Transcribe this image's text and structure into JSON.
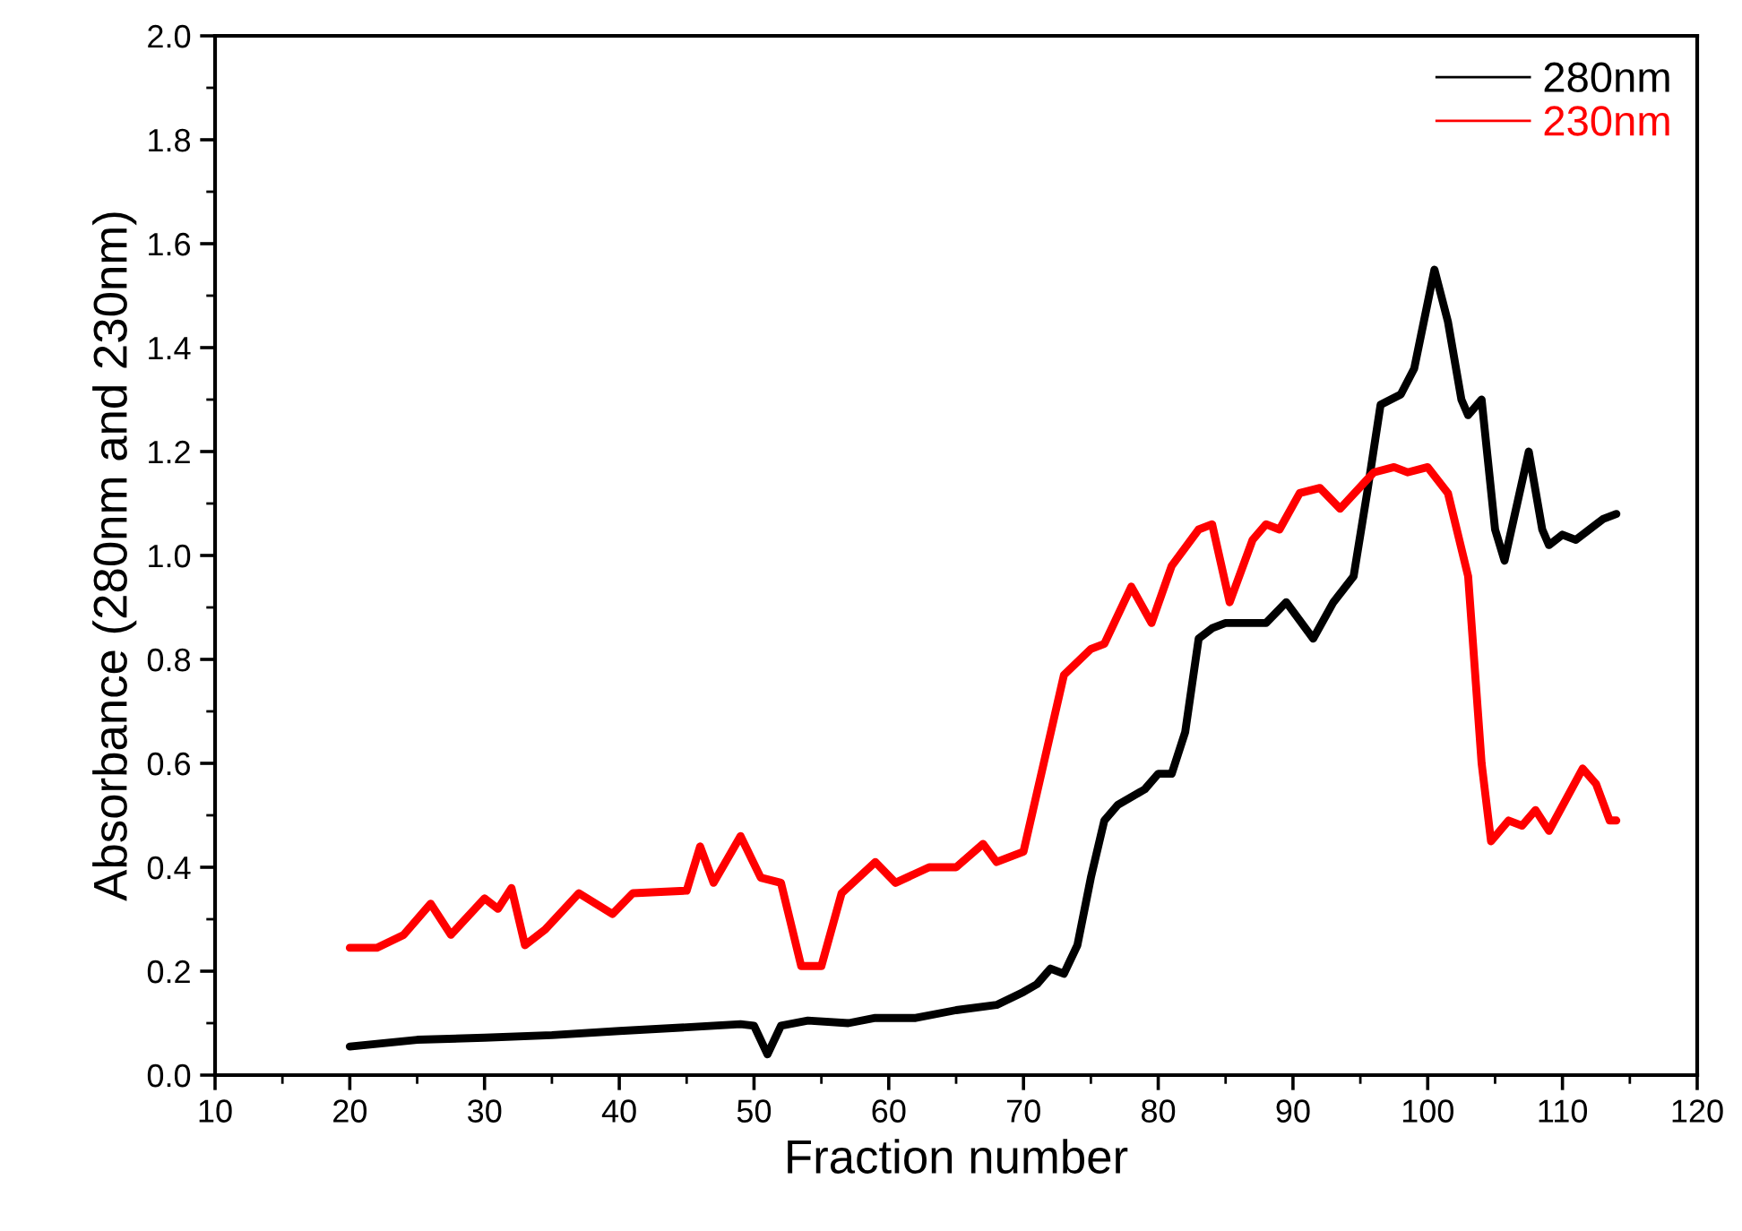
{
  "chart_data": {
    "type": "line",
    "xlabel": "Fraction number",
    "ylabel": "Absorbance (280nm and 230nm)",
    "xlim": [
      10,
      120
    ],
    "xticks": [
      10,
      20,
      30,
      40,
      50,
      60,
      70,
      80,
      90,
      100,
      110,
      120
    ],
    "ylim": [
      0,
      2.0
    ],
    "yticks": [
      {
        "value": 0,
        "label": "0.0"
      },
      {
        "value": 0.2,
        "label": "0.2"
      },
      {
        "value": 0.4,
        "label": "0.4"
      },
      {
        "value": 0.6,
        "label": "0.6"
      },
      {
        "value": 0.8,
        "label": "0.8"
      },
      {
        "value": 1.0,
        "label": "1.0"
      },
      {
        "value": 1.2,
        "label": "1.2"
      },
      {
        "value": 1.4,
        "label": "1.4"
      },
      {
        "value": 1.6,
        "label": "1.6"
      },
      {
        "value": 1.8,
        "label": "1.8"
      },
      {
        "value": 2.0,
        "label": "2.0"
      }
    ],
    "grid": false,
    "legend": "top right",
    "marker": "none",
    "line_style": "solid",
    "series": [
      {
        "name": "280nm",
        "color": "#000000",
        "x": [
          20,
          25,
          30,
          35,
          40,
          45,
          49,
          50,
          51,
          52,
          54,
          57,
          59,
          62,
          65,
          68,
          70,
          71,
          72,
          73,
          74,
          75,
          76,
          77,
          79,
          80,
          81,
          82,
          83,
          84,
          85,
          88,
          89.5,
          91.5,
          93,
          94.5,
          95.5,
          96.5,
          98,
          99,
          100.5,
          101.5,
          102.5,
          103,
          104,
          105,
          105.7,
          107.5,
          108.5,
          109,
          110,
          111,
          113,
          114
        ],
        "values": [
          0.055,
          0.068,
          0.072,
          0.077,
          0.085,
          0.092,
          0.098,
          0.095,
          0.04,
          0.095,
          0.105,
          0.1,
          0.11,
          0.11,
          0.125,
          0.135,
          0.16,
          0.175,
          0.205,
          0.195,
          0.25,
          0.38,
          0.49,
          0.52,
          0.55,
          0.58,
          0.58,
          0.66,
          0.84,
          0.86,
          0.87,
          0.87,
          0.91,
          0.84,
          0.91,
          0.96,
          1.12,
          1.29,
          1.31,
          1.36,
          1.55,
          1.45,
          1.3,
          1.27,
          1.3,
          1.05,
          0.99,
          1.2,
          1.05,
          1.02,
          1.04,
          1.03,
          1.07,
          1.08
        ]
      },
      {
        "name": "230nm",
        "color": "#ff0000",
        "x": [
          20,
          22,
          24,
          26,
          27.5,
          30,
          31,
          32,
          33,
          34.5,
          37,
          39.5,
          41,
          45,
          46,
          47,
          49,
          50.5,
          52,
          53.5,
          55,
          56.5,
          59,
          60.5,
          63,
          65,
          67,
          68,
          70,
          71.5,
          73,
          75,
          76,
          78,
          79.5,
          81,
          83,
          84,
          85.3,
          87,
          88,
          89,
          90.5,
          92,
          93.5,
          96,
          97.5,
          98.5,
          100,
          101.5,
          103,
          104,
          104.7,
          106,
          107,
          108,
          109,
          111.5,
          112.5,
          113.5,
          114
        ],
        "values": [
          0.245,
          0.245,
          0.27,
          0.33,
          0.27,
          0.34,
          0.32,
          0.36,
          0.25,
          0.28,
          0.35,
          0.31,
          0.35,
          0.355,
          0.44,
          0.37,
          0.46,
          0.38,
          0.37,
          0.21,
          0.21,
          0.35,
          0.41,
          0.37,
          0.4,
          0.4,
          0.445,
          0.41,
          0.43,
          0.6,
          0.77,
          0.82,
          0.83,
          0.94,
          0.87,
          0.98,
          1.05,
          1.06,
          0.91,
          1.03,
          1.06,
          1.05,
          1.12,
          1.13,
          1.09,
          1.16,
          1.17,
          1.16,
          1.17,
          1.12,
          0.96,
          0.6,
          0.45,
          0.49,
          0.48,
          0.51,
          0.47,
          0.59,
          0.56,
          0.49,
          0.49
        ]
      }
    ]
  }
}
